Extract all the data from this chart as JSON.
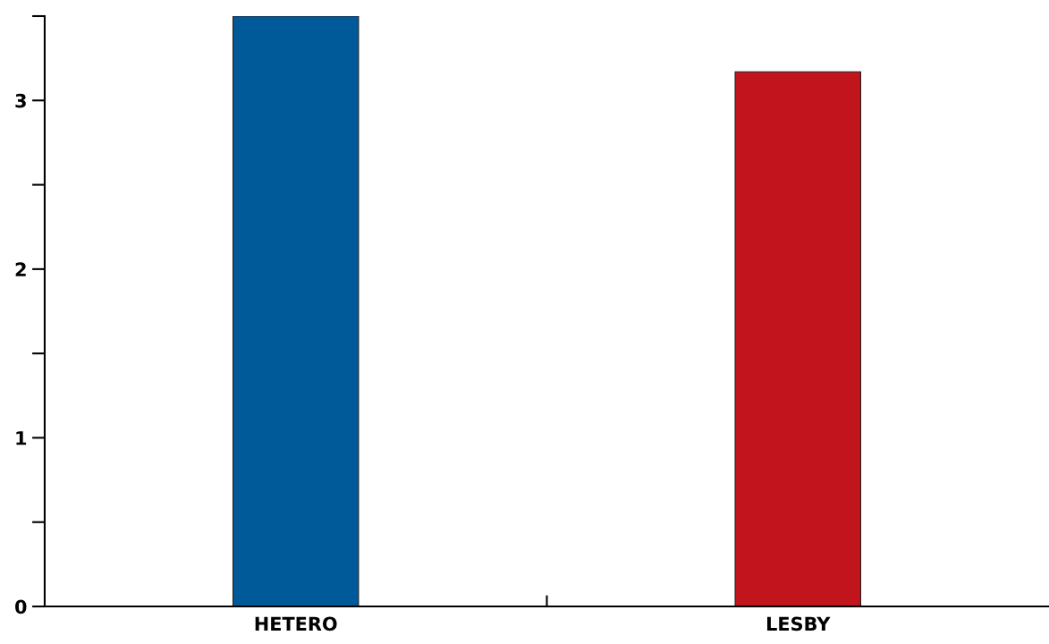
{
  "chart_data": {
    "type": "bar",
    "categories": [
      "HETERO",
      "LESBY"
    ],
    "values": [
      3.5,
      3.17
    ],
    "colors": [
      "#005a9a",
      "#c1141c"
    ],
    "ylim": [
      0,
      3.5
    ],
    "yticks": [
      0,
      {
        "value": 0.5,
        "label": null
      },
      1,
      {
        "value": 1.5,
        "label": null
      },
      2,
      {
        "value": 2.5,
        "label": null
      },
      3,
      {
        "value": 3.5,
        "label": null
      }
    ],
    "grid": false
  }
}
